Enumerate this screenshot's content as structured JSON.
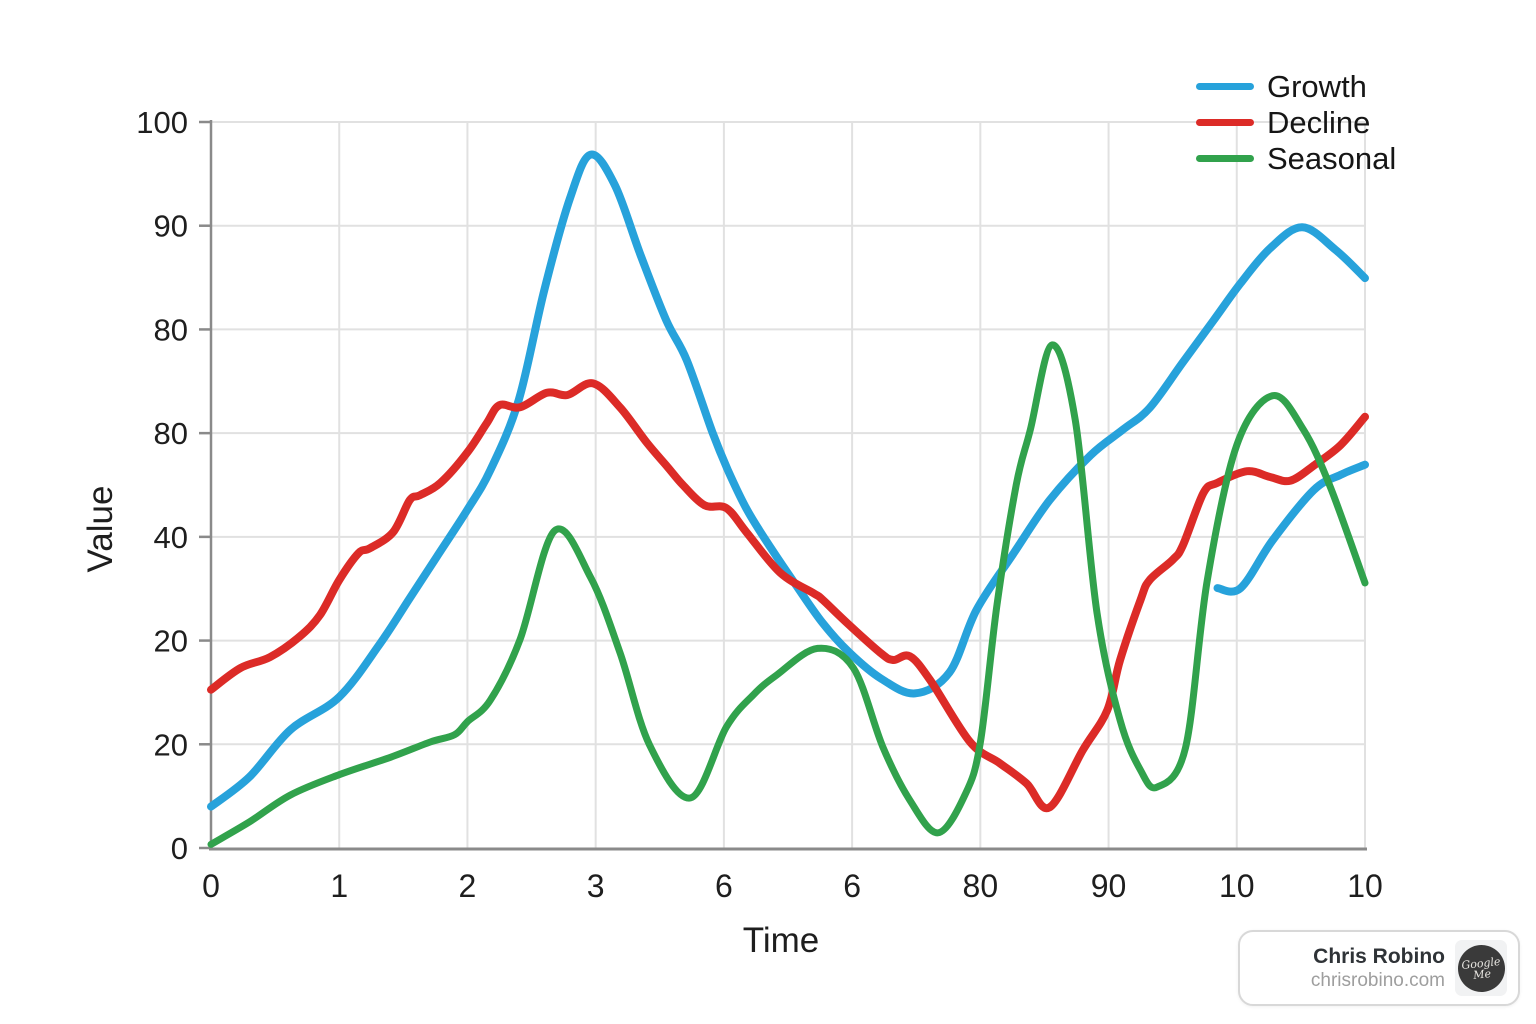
{
  "chart_data": {
    "type": "line",
    "title": "",
    "xlabel": "Time",
    "ylabel": "Value",
    "x_tick_labels": [
      "0",
      "1",
      "2",
      "3",
      "6",
      "6",
      "80",
      "90",
      "10",
      "10"
    ],
    "y_tick_labels_bottom_to_top": [
      "0",
      "20",
      "20",
      "40",
      "80",
      "80",
      "90",
      "100"
    ],
    "value_range": [
      0,
      100
    ],
    "grid": true,
    "legend_position": "top-right",
    "axis_color": "#8a8a8a",
    "gridline_color": "#e1e1e1",
    "series": [
      {
        "name": "Growth",
        "color": "#27a2db",
        "stroke_width": 8,
        "segments": [
          [
            [
              0,
              5.7
            ],
            [
              0.3,
              9.8
            ],
            [
              0.62,
              16.3
            ],
            [
              1,
              20.8
            ],
            [
              1.32,
              28.2
            ],
            [
              1.55,
              34.4
            ],
            [
              1.76,
              40.1
            ],
            [
              2,
              46.6
            ],
            [
              2.18,
              52.1
            ],
            [
              2.4,
              61.7
            ],
            [
              2.6,
              76.9
            ],
            [
              2.8,
              89.5
            ],
            [
              2.96,
              95.5
            ],
            [
              3.15,
              91.3
            ],
            [
              3.35,
              81.7
            ],
            [
              3.55,
              72.7
            ],
            [
              3.71,
              67.2
            ],
            [
              3.91,
              57.3
            ],
            [
              4.03,
              52.1
            ],
            [
              4.18,
              46.6
            ],
            [
              4.36,
              41.5
            ],
            [
              4.57,
              36
            ],
            [
              4.77,
              31
            ],
            [
              4.98,
              26.9
            ],
            [
              5.22,
              23.4
            ],
            [
              5.49,
              21.3
            ],
            [
              5.76,
              24.2
            ],
            [
              5.97,
              32.8
            ],
            [
              6.26,
              40.6
            ],
            [
              6.54,
              47.9
            ],
            [
              6.86,
              54.1
            ],
            [
              7.11,
              57.6
            ],
            [
              7.32,
              60.6
            ],
            [
              7.58,
              66.9
            ],
            [
              7.82,
              72.7
            ],
            [
              8.03,
              77.8
            ],
            [
              8.26,
              82.6
            ],
            [
              8.51,
              85.5
            ],
            [
              8.77,
              82.4
            ],
            [
              9,
              78.5
            ]
          ],
          [
            [
              7.85,
              35.8
            ],
            [
              8.03,
              35.8
            ],
            [
              8.28,
              42.4
            ],
            [
              8.6,
              49.3
            ],
            [
              8.81,
              51.4
            ],
            [
              9,
              52.8
            ]
          ]
        ]
      },
      {
        "name": "Decline",
        "color": "#dc2b27",
        "stroke_width": 8,
        "segments": [
          [
            [
              0,
              21.8
            ],
            [
              0.23,
              24.8
            ],
            [
              0.46,
              26.3
            ],
            [
              0.69,
              29.1
            ],
            [
              0.85,
              32.1
            ],
            [
              1,
              36.9
            ],
            [
              1.15,
              40.6
            ],
            [
              1.24,
              41.3
            ],
            [
              1.42,
              43.5
            ],
            [
              1.55,
              47.9
            ],
            [
              1.63,
              48.6
            ],
            [
              1.79,
              50.3
            ],
            [
              2,
              54.5
            ],
            [
              2.15,
              58.5
            ],
            [
              2.25,
              61
            ],
            [
              2.41,
              60.7
            ],
            [
              2.62,
              62.7
            ],
            [
              2.78,
              62.4
            ],
            [
              2.98,
              64
            ],
            [
              3.19,
              60.7
            ],
            [
              3.4,
              55.8
            ],
            [
              3.56,
              52.5
            ],
            [
              3.68,
              50
            ],
            [
              3.85,
              47.2
            ],
            [
              4.02,
              46.8
            ],
            [
              4.18,
              43.4
            ],
            [
              4.44,
              37.9
            ],
            [
              4.7,
              35.1
            ],
            [
              4.77,
              34.2
            ],
            [
              4.96,
              31
            ],
            [
              5.22,
              26.9
            ],
            [
              5.32,
              25.9
            ],
            [
              5.45,
              26.4
            ],
            [
              5.61,
              23.1
            ],
            [
              5.92,
              14.6
            ],
            [
              6.15,
              11.7
            ],
            [
              6.36,
              8.9
            ],
            [
              6.54,
              5.6
            ],
            [
              6.8,
              13.5
            ],
            [
              6.99,
              19
            ],
            [
              7.09,
              25.9
            ],
            [
              7.25,
              34.2
            ],
            [
              7.32,
              36.9
            ],
            [
              7.5,
              39.7
            ],
            [
              7.58,
              41.7
            ],
            [
              7.74,
              48.9
            ],
            [
              7.85,
              50.3
            ],
            [
              8.08,
              51.9
            ],
            [
              8.26,
              51.1
            ],
            [
              8.42,
              50.6
            ],
            [
              8.61,
              52.8
            ],
            [
              8.81,
              55.5
            ],
            [
              9,
              59.4
            ]
          ]
        ]
      },
      {
        "name": "Seasonal",
        "color": "#31a24c",
        "stroke_width": 7,
        "segments": [
          [
            [
              0,
              0.5
            ],
            [
              0.3,
              3.6
            ],
            [
              0.62,
              7.3
            ],
            [
              1,
              10.1
            ],
            [
              1.4,
              12.5
            ],
            [
              1.71,
              14.6
            ],
            [
              1.9,
              15.6
            ],
            [
              2,
              17.4
            ],
            [
              2.18,
              20.4
            ],
            [
              2.41,
              28.7
            ],
            [
              2.68,
              43.7
            ],
            [
              2.96,
              37.3
            ],
            [
              3.19,
              26.9
            ],
            [
              3.42,
              14.2
            ],
            [
              3.74,
              6.9
            ],
            [
              4.02,
              16.7
            ],
            [
              4.23,
              21.1
            ],
            [
              4.41,
              23.8
            ],
            [
              4.73,
              27.5
            ],
            [
              5.01,
              24.8
            ],
            [
              5.24,
              13.9
            ],
            [
              5.45,
              6.6
            ],
            [
              5.67,
              2.1
            ],
            [
              5.88,
              7.3
            ],
            [
              6,
              14.5
            ],
            [
              6.13,
              33.5
            ],
            [
              6.28,
              50
            ],
            [
              6.39,
              57.6
            ],
            [
              6.56,
              69.3
            ],
            [
              6.74,
              59
            ],
            [
              6.91,
              32.4
            ],
            [
              7.09,
              17.6
            ],
            [
              7.25,
              10.7
            ],
            [
              7.38,
              8.4
            ],
            [
              7.6,
              13.8
            ],
            [
              7.77,
              36.9
            ],
            [
              8,
              55.5
            ],
            [
              8.28,
              62.3
            ],
            [
              8.52,
              57.6
            ],
            [
              8.73,
              49.7
            ],
            [
              9,
              36.5
            ]
          ]
        ]
      }
    ]
  },
  "attribution": {
    "name": "Chris Robino",
    "url": "chrisrobino.com",
    "badge_line1": "Google",
    "badge_line2": "Me"
  }
}
